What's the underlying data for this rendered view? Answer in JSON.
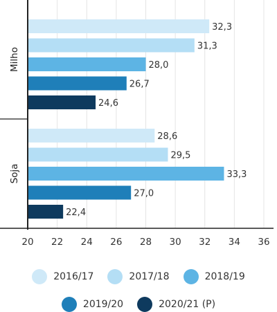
{
  "chart_data": {
    "type": "bar",
    "orientation": "horizontal",
    "categories": [
      "Milho",
      "Soja"
    ],
    "series": [
      {
        "name": "2016/17",
        "color": "#cfe9f8",
        "values": [
          32.3,
          28.6
        ],
        "labels": [
          "32,3",
          "28,6"
        ]
      },
      {
        "name": "2017/18",
        "color": "#b4def5",
        "values": [
          31.3,
          29.5
        ],
        "labels": [
          "31,3",
          "29,5"
        ]
      },
      {
        "name": "2018/19",
        "color": "#5db4e4",
        "values": [
          28.0,
          33.3
        ],
        "labels": [
          "28,0",
          "33,3"
        ]
      },
      {
        "name": "2019/20",
        "color": "#1f7fb9",
        "values": [
          26.7,
          27.0
        ],
        "labels": [
          "26,7",
          "27,0"
        ]
      },
      {
        "name": "2020/21 (P)",
        "color": "#0e3a5e",
        "values": [
          24.6,
          22.4
        ],
        "labels": [
          "24,6",
          "22,4"
        ]
      }
    ],
    "xlim": [
      20,
      36
    ],
    "xticks": [
      20,
      22,
      24,
      26,
      28,
      30,
      32,
      34,
      36
    ],
    "xtick_labels": [
      "20",
      "22",
      "24",
      "26",
      "28",
      "30",
      "32",
      "34",
      "36"
    ],
    "grid": true,
    "legend_position": "bottom",
    "title": "",
    "xlabel": "",
    "ylabel": ""
  }
}
